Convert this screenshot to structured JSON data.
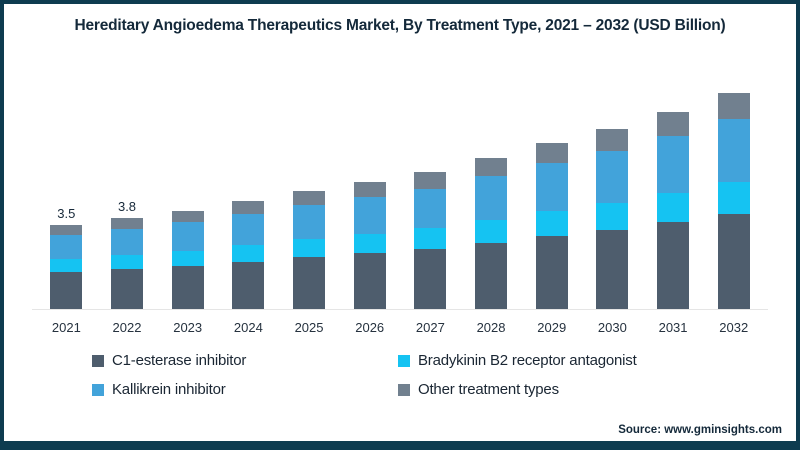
{
  "frame": {
    "border_color": "#0e3c50",
    "background": "#ffffff"
  },
  "title": "Hereditary Angioedema Therapeutics Market, By Treatment Type, 2021 – 2032 (USD Billion)",
  "source": "Source: www.gminsights.com",
  "chart_data": {
    "type": "bar",
    "stacked": true,
    "title": "Hereditary Angioedema Therapeutics Market, By Treatment Type, 2021 – 2032 (USD Billion)",
    "xlabel": "",
    "ylabel": "USD Billion",
    "grid": false,
    "legend_position": "bottom",
    "axis_color": "#e5e5e5",
    "categories": [
      "2021",
      "2022",
      "2023",
      "2024",
      "2025",
      "2026",
      "2027",
      "2028",
      "2029",
      "2030",
      "2031",
      "2032"
    ],
    "totals": [
      3.5,
      3.8,
      4.1,
      4.5,
      4.9,
      5.3,
      5.7,
      6.3,
      6.9,
      7.5,
      8.2,
      9.0
    ],
    "value_labels": {
      "2021": "3.5",
      "2022": "3.8"
    },
    "series": [
      {
        "name": "C1-esterase inhibitor",
        "color": "#4e5d6d",
        "values": [
          1.54,
          1.67,
          1.8,
          1.98,
          2.16,
          2.33,
          2.51,
          2.77,
          3.04,
          3.3,
          3.61,
          3.96
        ]
      },
      {
        "name": "Bradykinin B2 receptor antagonist",
        "color": "#15c3f2",
        "values": [
          0.53,
          0.57,
          0.62,
          0.68,
          0.74,
          0.8,
          0.86,
          0.95,
          1.04,
          1.13,
          1.23,
          1.35
        ]
      },
      {
        "name": "Kallikrein inhibitor",
        "color": "#42a3da",
        "values": [
          1.02,
          1.1,
          1.19,
          1.31,
          1.42,
          1.54,
          1.65,
          1.83,
          2.0,
          2.17,
          2.38,
          2.61
        ]
      },
      {
        "name": "Other treatment types",
        "color": "#71808f",
        "values": [
          0.42,
          0.46,
          0.49,
          0.54,
          0.59,
          0.64,
          0.68,
          0.76,
          0.83,
          0.9,
          0.98,
          1.08
        ]
      }
    ]
  }
}
